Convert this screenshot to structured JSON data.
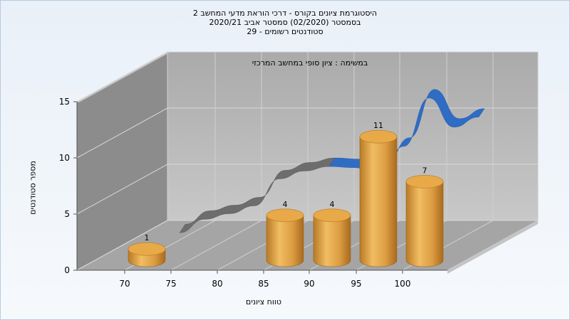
{
  "title_lines": [
    "היסטוגרמת ציונים בקורס - דרכי הוראת מדעי המחשב 2",
    "בסמסטר  (02/2020)  סמסטר אביב 2020/21",
    "סטודנטים רשומים - 29"
  ],
  "chart_data": {
    "type": "bar",
    "title": "היסטוגרמת ציונים בקורס - דרכי הוראת מדעי המחשב 2",
    "annotation": "במשימה : ציון סופי במחשב המרכזי",
    "xlabel": "טווח ציונים",
    "ylabel": "מספר סטודנטים",
    "x_ticks": [
      "70",
      "75",
      "80",
      "85",
      "90",
      "95",
      "100"
    ],
    "y_ticks": [
      0,
      5,
      10,
      15
    ],
    "ylim": [
      0,
      15
    ],
    "bars": [
      {
        "category": "70",
        "value": 1
      },
      {
        "category": "85",
        "value": 4
      },
      {
        "category": "90",
        "value": 4
      },
      {
        "category": "95",
        "value": 11
      },
      {
        "category": "100",
        "value": 7
      }
    ],
    "trend_curve": {
      "values": [
        0.8,
        2.0,
        2.5,
        3.2,
        5.6,
        6.3,
        6.7,
        6.6,
        6.0,
        8.5,
        12.8,
        10.2,
        11.1
      ]
    },
    "grid": true,
    "style": "3d",
    "colors": {
      "bar": "#e0a040",
      "trend_gray": "#707070",
      "trend_blue": "#2f6cc4"
    }
  }
}
